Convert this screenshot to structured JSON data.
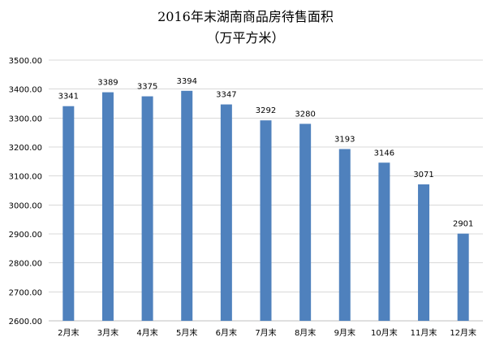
{
  "chart_data": {
    "type": "bar",
    "title": "2016年末湖南商品房待售面积",
    "subtitle": "（万平方米）",
    "categories": [
      "2月末",
      "3月末",
      "4月末",
      "5月末",
      "6月末",
      "7月末",
      "8月末",
      "9月末",
      "10月末",
      "11月末",
      "12月末"
    ],
    "values": [
      3341,
      3389,
      3375,
      3394,
      3347,
      3292,
      3280,
      3193,
      3146,
      3071,
      2901
    ],
    "data_labels": [
      "3341",
      "3389",
      "3375",
      "3394",
      "3347",
      "3292",
      "3280",
      "3193",
      "3146",
      "3071",
      "2901"
    ],
    "y_ticks": [
      "2600.00",
      "2700.00",
      "2800.00",
      "2900.00",
      "3000.00",
      "3100.00",
      "3200.00",
      "3300.00",
      "3400.00",
      "3500.00"
    ],
    "ylim": [
      2600,
      3500
    ],
    "grid": true,
    "legend": "none",
    "bar_color": "#4f81bd"
  }
}
